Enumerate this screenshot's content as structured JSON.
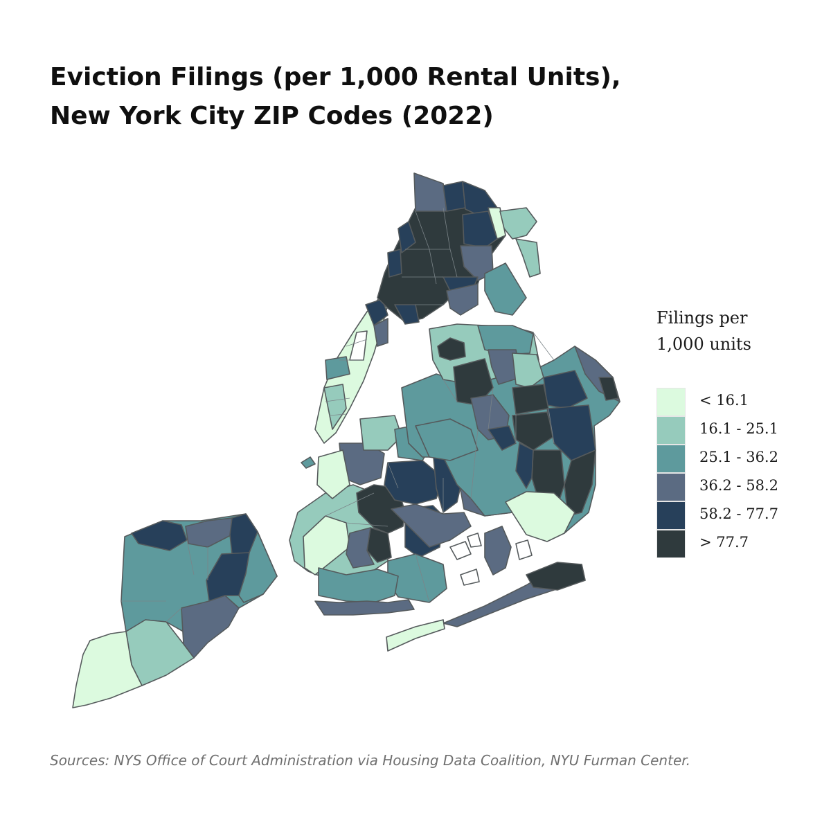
{
  "title": {
    "line1": "Eviction Filings (per 1,000 Rental Units),",
    "line2": "New York City ZIP Codes (2022)"
  },
  "legend": {
    "title_line1": "Filings per",
    "title_line2": "1,000 units",
    "items": [
      {
        "label": "< 16.1",
        "color": "#dcfadf"
      },
      {
        "label": "16.1 - 25.1",
        "color": "#96cbbc"
      },
      {
        "label": "25.1 - 36.2",
        "color": "#5e9a9d"
      },
      {
        "label": "36.2 - 58.2",
        "color": "#5b6b82"
      },
      {
        "label": "58.2 - 77.7",
        "color": "#27405a"
      },
      {
        "label": "> 77.7",
        "color": "#2f3a3d"
      }
    ]
  },
  "source": "Sources: NYS Office of Court Administration via Housing Data Coalition, NYU Furman Center."
}
